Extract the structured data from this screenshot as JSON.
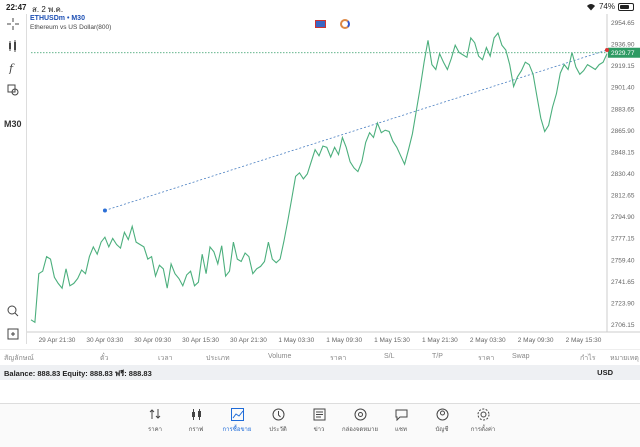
{
  "status": {
    "time": "22:47",
    "date": "ส. 2 พ.ค.",
    "battery": "74%",
    "battery_level": 0.74
  },
  "chart": {
    "symbol_line": "ETHUSDm • M30",
    "description": "Ethereum vs US Dollar(800)",
    "timeframe": "M30",
    "current_price": "2929.77"
  },
  "chart_data": {
    "type": "line",
    "series": [
      {
        "values": [
          2710,
          2708,
          2748,
          2750,
          2762,
          2760,
          2745,
          2740,
          2736,
          2752,
          2738,
          2740,
          2744,
          2751,
          2748,
          2762,
          2770,
          2764,
          2774,
          2778,
          2770,
          2777,
          2772,
          2769,
          2782,
          2776,
          2787,
          2774,
          2772,
          2770,
          2760,
          2762,
          2746,
          2755,
          2752,
          2736,
          2756,
          2748,
          2744,
          2738,
          2747,
          2750,
          2738,
          2741,
          2764,
          2748,
          2770,
          2766,
          2756,
          2771,
          2746,
          2750,
          2774,
          2760,
          2758,
          2765,
          2762,
          2748,
          2752,
          2754,
          2758,
          2774,
          2760,
          2757,
          2760,
          2775,
          2792,
          2810,
          2828,
          2831,
          2826,
          2830,
          2840,
          2850,
          2845,
          2853,
          2852,
          2844,
          2852,
          2846,
          2860,
          2852,
          2840,
          2835,
          2832,
          2840,
          2856,
          2864,
          2860,
          2872,
          2864,
          2866,
          2865,
          2857,
          2852,
          2845,
          2838,
          2850,
          2863,
          2882,
          2901,
          2922,
          2940,
          2920,
          2916,
          2929,
          2922,
          2916,
          2925,
          2936,
          2930,
          2928,
          2926,
          2942,
          2938,
          2927,
          2924,
          2934,
          2927,
          2942,
          2946,
          2936,
          2932,
          2920,
          2902,
          2910,
          2915,
          2922,
          2920,
          2912,
          2894,
          2876,
          2865,
          2870,
          2885,
          2896,
          2913,
          2920,
          2916,
          2930,
          2918,
          2912,
          2915,
          2920,
          2918,
          2916,
          2920,
          2922,
          2929
        ]
      }
    ],
    "x_tick_labels": [
      "29 Apr 21:30",
      "30 Apr 03:30",
      "30 Apr 09:30",
      "30 Apr 15:30",
      "30 Apr 21:30",
      "1 May 03:30",
      "1 May 09:30",
      "1 May 15:30",
      "1 May 21:30",
      "2 May 03:30",
      "2 May 09:30",
      "2 May 15:30"
    ],
    "y_tick_labels": [
      "2954.65",
      "2936.90",
      "2919.15",
      "2901.40",
      "2883.65",
      "2865.90",
      "2848.15",
      "2830.40",
      "2812.65",
      "2794.90",
      "2777.15",
      "2759.40",
      "2741.65",
      "2723.90",
      "2706.15"
    ],
    "ylim": [
      2700,
      2960
    ],
    "trendline": {
      "from_index": 19,
      "from_value": 2800,
      "to_index": 148,
      "to_value": 2932
    },
    "price_line": 2929.77,
    "colors": {
      "line": "#4caf7d",
      "trend": "#4a7fc1",
      "price": "#2e9a63"
    }
  },
  "table_headers": [
    "สัญลักษณ์",
    "ตั๋ว",
    "เวลา",
    "ประเภท",
    "Volume",
    "ราคา",
    "S/L",
    "T/P",
    "ราคา",
    "Swap",
    "กำไร",
    "หมายเหตุ"
  ],
  "account": {
    "summary": "Balance: 888.83 Equity: 888.83 ฟรี: 888.83",
    "currency": "USD"
  },
  "nav": [
    {
      "label": "ราคา",
      "icon": "quotes-icon"
    },
    {
      "label": "กราฟ",
      "icon": "candles-icon"
    },
    {
      "label": "การซื้อขาย",
      "icon": "trade-icon",
      "active": true
    },
    {
      "label": "ประวัติ",
      "icon": "history-icon"
    },
    {
      "label": "ข่าว",
      "icon": "news-icon"
    },
    {
      "label": "กล่องจดหมาย",
      "icon": "mail-icon"
    },
    {
      "label": "แชท",
      "icon": "chat-icon"
    },
    {
      "label": "บัญชี",
      "icon": "account-icon"
    },
    {
      "label": "การตั้งค่า",
      "icon": "settings-icon"
    }
  ]
}
